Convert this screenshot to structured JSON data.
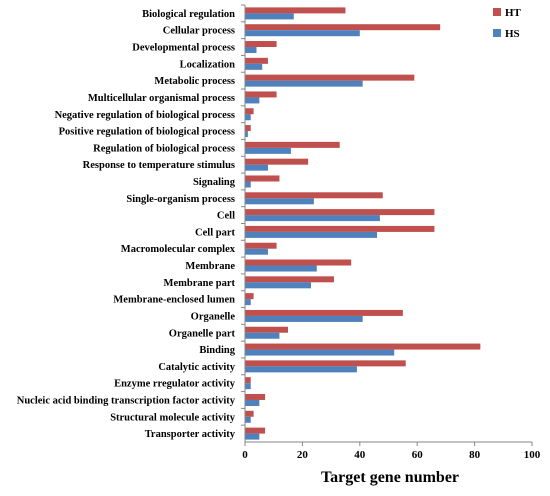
{
  "chart_data": {
    "type": "bar",
    "orientation": "horizontal",
    "categories": [
      "Biological regulation",
      "Cellular process",
      "Developmental process",
      "Localization",
      "Metabolic process",
      "Multicellular organismal process",
      "Negative regulation of biological process",
      "Positive regulation of biological process",
      "Regulation of biological process",
      "Response to temperature stimulus",
      "Signaling",
      "Single-organism process",
      "Cell",
      "Cell part",
      "Macromolecular complex",
      "Membrane",
      "Membrane part",
      "Membrane-enclosed lumen",
      "Organelle",
      "Organelle part",
      "Binding",
      "Catalytic activity",
      "Enzyme rregulator activity",
      "Nucleic acid binding transcription factor activity",
      "Structural molecule activity",
      "Transporter activity"
    ],
    "series": [
      {
        "name": "HT",
        "color": "#C0504D",
        "values": [
          35,
          68,
          11,
          8,
          59,
          11,
          3,
          2,
          33,
          22,
          12,
          48,
          66,
          66,
          11,
          37,
          31,
          3,
          55,
          15,
          82,
          56,
          2,
          7,
          3,
          7
        ]
      },
      {
        "name": "HS",
        "color": "#4F81BD",
        "values": [
          17,
          40,
          4,
          6,
          41,
          5,
          2,
          1,
          16,
          8,
          2,
          24,
          47,
          46,
          8,
          25,
          23,
          2,
          41,
          12,
          52,
          39,
          2,
          5,
          2,
          5
        ]
      }
    ],
    "xlabel": "Target gene number",
    "ylabel": "",
    "xlim": [
      0,
      100
    ],
    "xticks": [
      "0",
      "20",
      "40",
      "60",
      "80",
      "100"
    ],
    "grid": false,
    "legend_position": "top-right"
  }
}
